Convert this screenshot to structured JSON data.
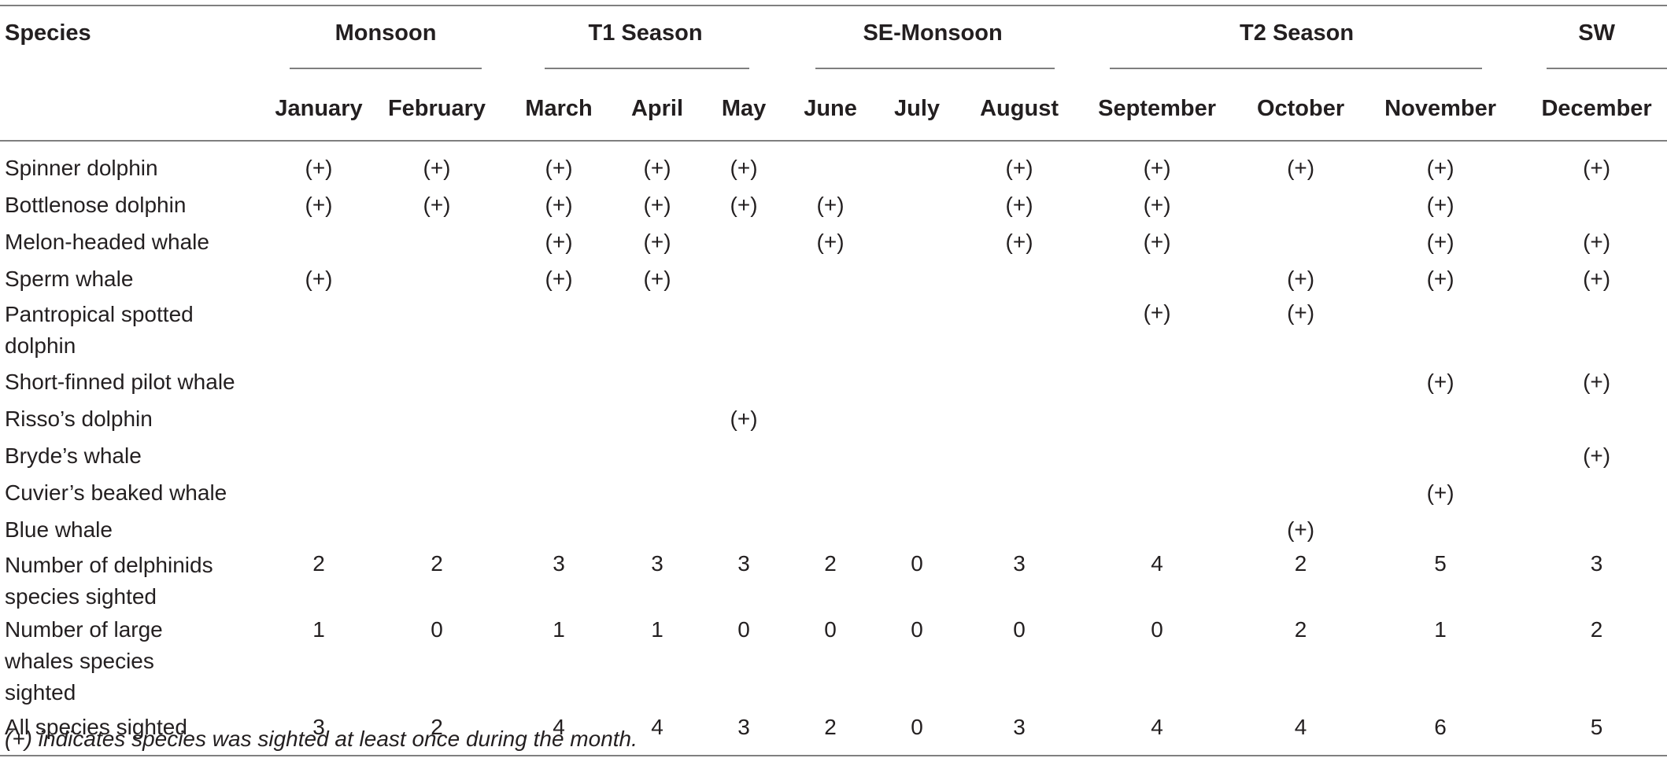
{
  "table": {
    "species_header": "Species",
    "seasons": [
      "Monsoon",
      "T1 Season",
      "SE-Monsoon",
      "T2 Season",
      "SW"
    ],
    "months": [
      "January",
      "February",
      "March",
      "April",
      "May",
      "June",
      "July",
      "August",
      "September",
      "October",
      "November",
      "December"
    ],
    "rows": [
      {
        "label": "Spinner dolphin",
        "cells": [
          "(+)",
          "(+)",
          "(+)",
          "(+)",
          "(+)",
          "",
          "",
          "(+)",
          "(+)",
          "(+)",
          "(+)",
          "(+)"
        ]
      },
      {
        "label": "Bottlenose dolphin",
        "cells": [
          "(+)",
          "(+)",
          "(+)",
          "(+)",
          "(+)",
          "(+)",
          "",
          "(+)",
          "(+)",
          "",
          "(+)",
          ""
        ]
      },
      {
        "label": "Melon-headed whale",
        "cells": [
          "",
          "",
          "(+)",
          "(+)",
          "",
          "(+)",
          "",
          "(+)",
          "(+)",
          "",
          "(+)",
          "(+)"
        ]
      },
      {
        "label": "Sperm whale",
        "cells": [
          "(+)",
          "",
          "(+)",
          "(+)",
          "",
          "",
          "",
          "",
          "",
          "(+)",
          "(+)",
          "(+)"
        ]
      },
      {
        "label": "Pantropical spotted dolphin",
        "cells": [
          "",
          "",
          "",
          "",
          "",
          "",
          "",
          "",
          "(+)",
          "(+)",
          "",
          ""
        ]
      },
      {
        "label": "Short-finned pilot whale",
        "cells": [
          "",
          "",
          "",
          "",
          "",
          "",
          "",
          "",
          "",
          "",
          "(+)",
          "(+)"
        ]
      },
      {
        "label": "Risso’s dolphin",
        "cells": [
          "",
          "",
          "",
          "",
          "(+)",
          "",
          "",
          "",
          "",
          "",
          "",
          ""
        ]
      },
      {
        "label": "Bryde’s whale",
        "cells": [
          "",
          "",
          "",
          "",
          "",
          "",
          "",
          "",
          "",
          "",
          "",
          "(+)"
        ]
      },
      {
        "label": "Cuvier’s beaked whale",
        "cells": [
          "",
          "",
          "",
          "",
          "",
          "",
          "",
          "",
          "",
          "",
          "(+)",
          ""
        ]
      },
      {
        "label": "Blue whale",
        "cells": [
          "",
          "",
          "",
          "",
          "",
          "",
          "",
          "",
          "",
          "(+)",
          "",
          ""
        ]
      },
      {
        "label": "Number of delphinids species sighted",
        "cells": [
          "2",
          "2",
          "3",
          "3",
          "3",
          "2",
          "0",
          "3",
          "4",
          "2",
          "5",
          "3"
        ]
      },
      {
        "label": "Number of large whales species sighted",
        "cells": [
          "1",
          "0",
          "1",
          "1",
          "0",
          "0",
          "0",
          "0",
          "0",
          "2",
          "1",
          "2"
        ]
      },
      {
        "label": "All species sighted",
        "cells": [
          "3",
          "2",
          "4",
          "4",
          "3",
          "2",
          "0",
          "3",
          "4",
          "4",
          "6",
          "5"
        ]
      }
    ]
  },
  "footnote": "(+) indicates species was sighted at least once during the month."
}
